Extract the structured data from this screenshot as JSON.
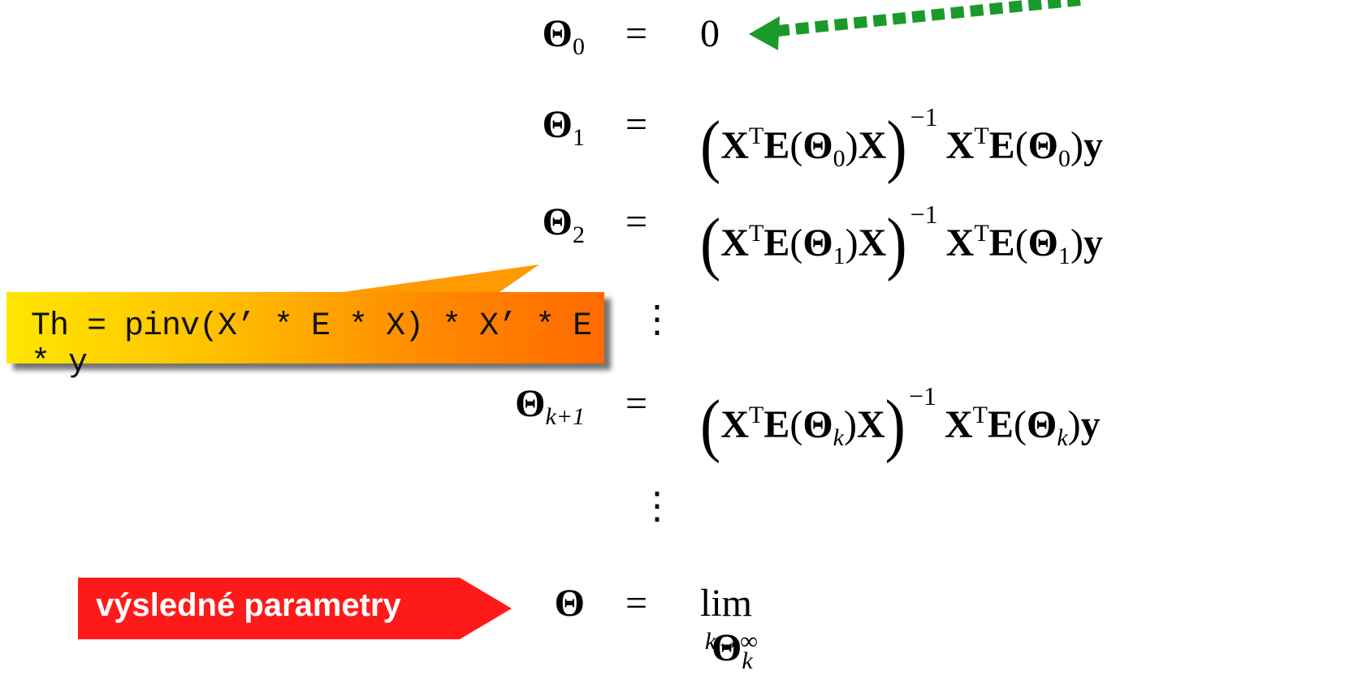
{
  "rows": [
    {
      "lhs": "Θ",
      "sub": "0",
      "eq": "=",
      "rhs": "0"
    },
    {
      "lhs": "Θ",
      "sub": "1",
      "eq": "=",
      "theta": "Θ",
      "idx": "0"
    },
    {
      "lhs": "Θ",
      "sub": "2",
      "eq": "=",
      "theta": "Θ",
      "idx": "1"
    },
    {
      "lhs": "Θ",
      "sub": "k+1",
      "eq": "=",
      "theta": "Θ",
      "idx": "k"
    }
  ],
  "expr": {
    "X": "X",
    "T": "T",
    "E": "E",
    "y": "y",
    "open_paren": "(",
    "close_paren": ")",
    "inv": "−1"
  },
  "vdots": "⋮",
  "final": {
    "lhs": "Θ",
    "eq": "=",
    "lim": "lim",
    "lim_sub": "k→∞",
    "rhs": "Θ",
    "rhs_sub": "k"
  },
  "callout": {
    "text": "Th = pinv(X’ * E * X) * X’ * E * y"
  },
  "label": {
    "text": "výsledné parametry"
  },
  "colors": {
    "green_arrow": "#1a9a2a",
    "red_label": "#ff1a1a",
    "callout_start": "#ffe600",
    "callout_end": "#ff6a00"
  }
}
